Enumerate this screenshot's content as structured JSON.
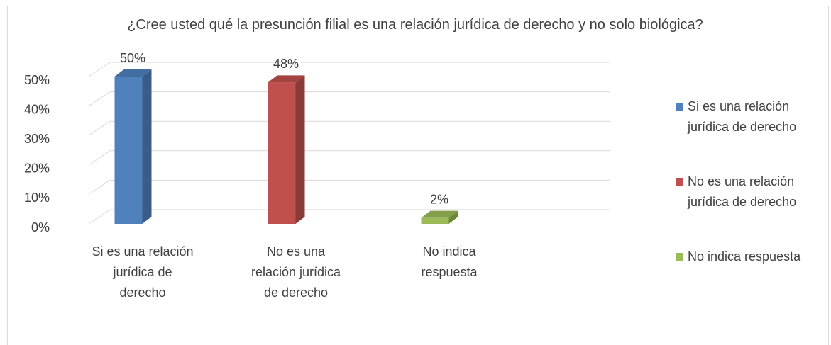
{
  "chart_data": {
    "type": "bar3d",
    "title": "¿Cree usted qué la presunción filial es una relación jurídica de derecho y no solo biológica?",
    "categories": [
      "Si es una relación jurídica de derecho",
      "No es una relación jurídica de derecho",
      "No indica respuesta"
    ],
    "values": [
      50,
      48,
      2
    ],
    "value_labels": [
      "50%",
      "48%",
      "2%"
    ],
    "colors": [
      "#4f81bd",
      "#c0504d",
      "#9bbb59"
    ],
    "ylim": [
      0,
      50
    ],
    "yticks": [
      {
        "value": 0,
        "label": "0%"
      },
      {
        "value": 10,
        "label": "10%"
      },
      {
        "value": 20,
        "label": "20%"
      },
      {
        "value": 30,
        "label": "30%"
      },
      {
        "value": 40,
        "label": "40%"
      },
      {
        "value": 50,
        "label": "50%"
      }
    ],
    "grid": true,
    "legend": "right"
  }
}
